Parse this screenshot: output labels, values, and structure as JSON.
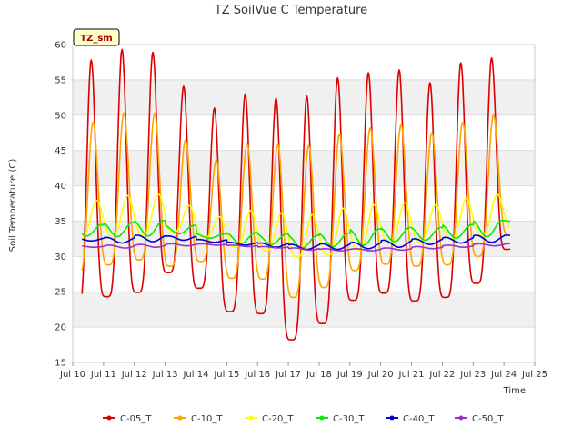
{
  "chart_data": {
    "type": "line",
    "title": "TZ SoilVue C Temperature",
    "xlabel": "Time",
    "ylabel": "Soil Temperature (C)",
    "badge": "TZ_sm",
    "xlim": [
      10,
      25
    ],
    "ylim": [
      15,
      60
    ],
    "x_ticks": [
      10,
      11,
      12,
      13,
      14,
      15,
      16,
      17,
      18,
      19,
      20,
      21,
      22,
      23,
      24,
      25
    ],
    "x_tick_labels": [
      "Jul 10",
      "Jul 11",
      "Jul 12",
      "Jul 13",
      "Jul 14",
      "Jul 15",
      "Jul 16",
      "Jul 17",
      "Jul 18",
      "Jul 19",
      "Jul 20",
      "Jul 21",
      "Jul 22",
      "Jul 23",
      "Jul 24",
      "Jul 25"
    ],
    "y_ticks": [
      15,
      20,
      25,
      30,
      35,
      40,
      45,
      50,
      55,
      60
    ],
    "y_tick_labels": [
      "15",
      "20",
      "25",
      "30",
      "35",
      "40",
      "45",
      "50",
      "55",
      "60"
    ],
    "x_start": 10.3,
    "x_end": 24.2,
    "legend_position": "bottom",
    "series": [
      {
        "name": "C-05_T",
        "color": "#dd0000",
        "phase": 0.6,
        "sharpness": 2.5,
        "peaks": [
          57.8,
          59.3,
          58.9,
          54.1,
          51.0,
          53.0,
          52.4,
          52.7,
          55.3,
          56.0,
          56.4,
          54.6,
          57.4,
          58.1
        ],
        "troughs": [
          22.2,
          24.3,
          24.9,
          27.7,
          25.5,
          22.2,
          21.9,
          18.2,
          20.5,
          23.8,
          24.8,
          23.7,
          24.2,
          26.2,
          31.0
        ]
      },
      {
        "name": "C-10_T",
        "color": "#ffa500",
        "phase": 0.66,
        "sharpness": 2.0,
        "peaks": [
          49.0,
          50.3,
          50.3,
          46.5,
          43.6,
          46.0,
          45.8,
          45.7,
          47.3,
          48.2,
          48.6,
          47.5,
          49.0,
          50.0
        ],
        "troughs": [
          27.3,
          28.8,
          29.5,
          28.6,
          29.3,
          26.9,
          26.8,
          24.2,
          25.6,
          28.0,
          28.9,
          28.6,
          28.8,
          30.0,
          33.0
        ]
      },
      {
        "name": "C-20_T",
        "color": "#ffff00",
        "phase": 0.78,
        "sharpness": 1.5,
        "peaks": [
          37.9,
          38.6,
          38.8,
          37.2,
          35.6,
          36.5,
          36.2,
          35.9,
          36.8,
          37.3,
          37.6,
          37.3,
          38.2,
          38.8
        ],
        "troughs": [
          32.8,
          32.9,
          33.1,
          33.5,
          32.7,
          31.3,
          30.8,
          29.9,
          30.2,
          30.9,
          31.8,
          32.1,
          32.5,
          33.0,
          34.0
        ]
      },
      {
        "name": "C-30_T",
        "color": "#00ee00",
        "phase": 0.95,
        "sharpness": 1.0,
        "peaks": [
          34.5,
          34.8,
          35.1,
          34.4,
          33.2,
          33.4,
          33.2,
          33.0,
          33.3,
          33.9,
          34.1,
          34.1,
          34.5,
          35.1
        ],
        "troughs": [
          32.9,
          32.8,
          32.9,
          33.2,
          32.6,
          31.8,
          31.7,
          31.2,
          31.4,
          31.6,
          32.1,
          32.3,
          32.6,
          32.8,
          34.8
        ]
      },
      {
        "name": "C-40_T",
        "color": "#0000cc",
        "phase": 1.1,
        "sharpness": 1.0,
        "peaks": [
          32.6,
          32.7,
          33.0,
          32.9,
          32.4,
          32.0,
          31.9,
          31.7,
          31.8,
          32.0,
          32.3,
          32.5,
          32.7,
          33.0
        ],
        "troughs": [
          32.2,
          31.9,
          32.1,
          32.3,
          32.0,
          31.6,
          31.3,
          31.0,
          31.0,
          31.1,
          31.3,
          31.7,
          31.9,
          32.0,
          33.1
        ]
      },
      {
        "name": "C-50_T",
        "color": "#9933cc",
        "phase": 1.2,
        "sharpness": 1.0,
        "peaks": [
          31.5,
          31.6,
          31.7,
          31.8,
          31.8,
          31.6,
          31.4,
          31.2,
          31.1,
          31.1,
          31.2,
          31.4,
          31.6,
          31.8
        ],
        "troughs": [
          31.3,
          31.2,
          31.3,
          31.5,
          31.6,
          31.4,
          31.2,
          30.9,
          30.8,
          30.8,
          30.9,
          31.1,
          31.3,
          31.5,
          31.7
        ]
      }
    ]
  }
}
